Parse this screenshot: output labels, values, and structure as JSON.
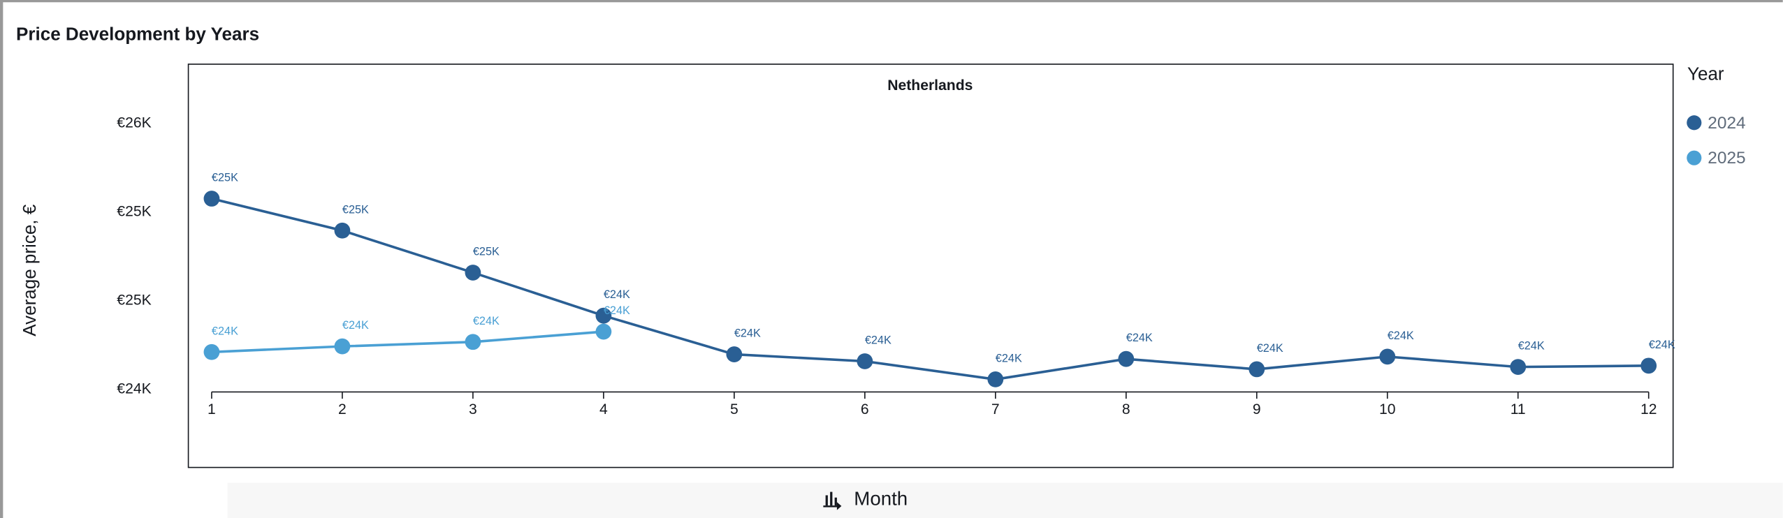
{
  "chart_data": {
    "type": "line",
    "title": "Price Development by Years",
    "subtitle": "Netherlands",
    "y_label": "Average price, €",
    "x_label": "Month",
    "legend_title": "Year",
    "legend": "right",
    "x": [
      1,
      2,
      3,
      4,
      5,
      6,
      7,
      8,
      9,
      10,
      11,
      12
    ],
    "xlim": [
      1,
      12
    ],
    "xticks": [
      1,
      2,
      3,
      4,
      5,
      6,
      7,
      8,
      9,
      10,
      11,
      12
    ],
    "ylim": [
      24000,
      25800
    ],
    "yticks": [
      {
        "value": 24000,
        "label": "€24K"
      },
      {
        "value": 24500,
        "label": "€25K"
      },
      {
        "value": 25000,
        "label": "€25K"
      },
      {
        "value": 25500,
        "label": "€26K"
      }
    ],
    "series": [
      {
        "name": "2024",
        "color": "#2a5f94",
        "values": [
          25077,
          24897,
          24660,
          24417,
          24199,
          24160,
          24058,
          24173,
          24115,
          24186,
          24128,
          24135
        ],
        "value_labels": [
          "€25K",
          "€25K",
          "€25K",
          "€24K",
          "€24K",
          "€24K",
          "€24K",
          "€24K",
          "€24K",
          "€24K",
          "€24K",
          "€24K"
        ]
      },
      {
        "name": "2025",
        "color": "#4aa0d4",
        "values": [
          24212,
          24244,
          24269,
          24327,
          null,
          null,
          null,
          null,
          null,
          null,
          null,
          null
        ],
        "value_labels": [
          "€24K",
          "€24K",
          "€24K",
          "€24K",
          null,
          null,
          null,
          null,
          null,
          null,
          null,
          null
        ]
      }
    ]
  }
}
